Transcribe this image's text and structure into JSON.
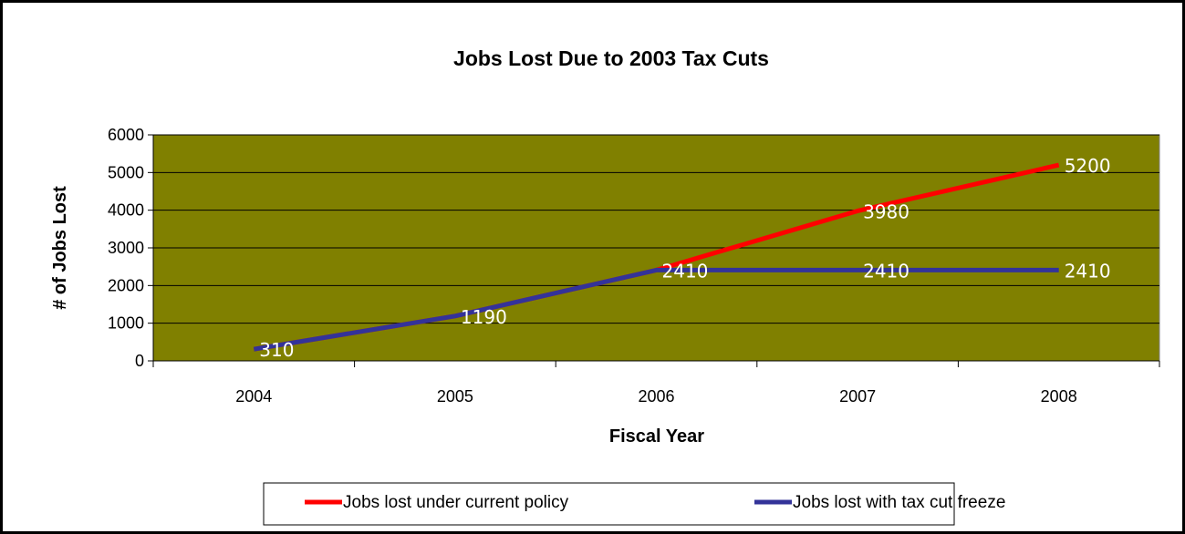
{
  "chart_data": {
    "type": "line",
    "title": "Jobs Lost Due to 2003 Tax Cuts",
    "xlabel": "Fiscal Year",
    "ylabel": "# of Jobs Lost",
    "categories": [
      "2004",
      "2005",
      "2006",
      "2007",
      "2008"
    ],
    "ylim": [
      0,
      6000
    ],
    "yticks": [
      0,
      1000,
      2000,
      3000,
      4000,
      5000,
      6000
    ],
    "grid": true,
    "plot_background": "#808000",
    "legend_position": "bottom",
    "series": [
      {
        "name": "Jobs lost under current policy",
        "color": "#ff0000",
        "values": [
          310,
          1190,
          2410,
          3980,
          5200
        ],
        "labels": [
          null,
          null,
          null,
          "3980",
          "5200"
        ]
      },
      {
        "name": "Jobs lost with tax cut freeze",
        "color": "#333399",
        "values": [
          310,
          1190,
          2410,
          2410,
          2410
        ],
        "labels": [
          "310",
          "1190",
          "2410",
          "2410",
          "2410"
        ]
      }
    ]
  }
}
